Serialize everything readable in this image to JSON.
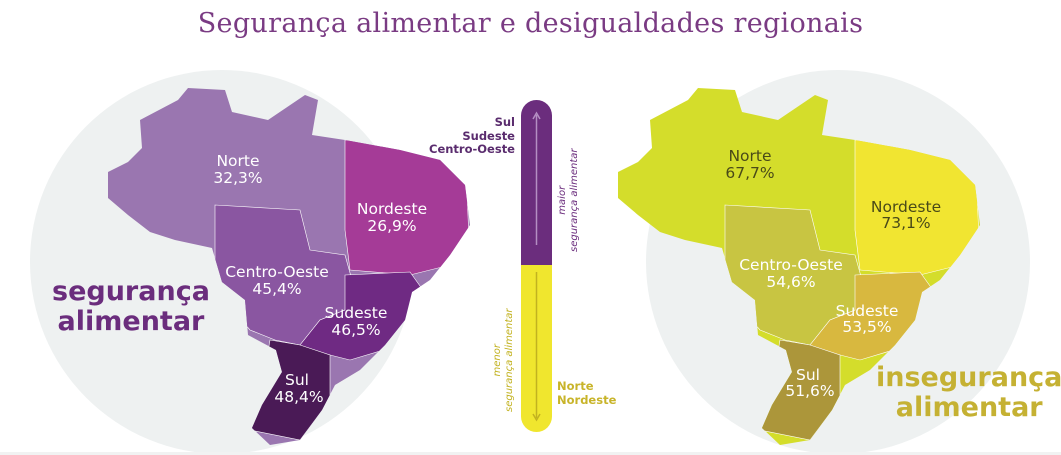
{
  "title": "Segurança alimentar e desigualdades regionais",
  "left_map": {
    "label_line1": "segurança",
    "label_line2": "alimentar",
    "label_color": "#6b2d7d",
    "regions": [
      {
        "name": "Norte",
        "value": "32,3%",
        "color": "#9a76b0"
      },
      {
        "name": "Nordeste",
        "value": "26,9%",
        "color": "#a53b97"
      },
      {
        "name": "Centro-Oeste",
        "value": "45,4%",
        "color": "#8a56a1"
      },
      {
        "name": "Sudeste",
        "value": "46,5%",
        "color": "#6f2a83"
      },
      {
        "name": "Sul",
        "value": "48,4%",
        "color": "#4a1a56"
      }
    ]
  },
  "right_map": {
    "label_line1": "insegurança",
    "label_line2": "alimentar",
    "label_color": "#c5b133",
    "regions": [
      {
        "name": "Norte",
        "value": "67,7%",
        "color": "#d4dd2b"
      },
      {
        "name": "Nordeste",
        "value": "73,1%",
        "color": "#f1e531"
      },
      {
        "name": "Centro-Oeste",
        "value": "54,6%",
        "color": "#c8c542"
      },
      {
        "name": "Sudeste",
        "value": "53,5%",
        "color": "#d8b83f"
      },
      {
        "name": "Sul",
        "value": "51,6%",
        "color": "#ac963a"
      }
    ]
  },
  "legend": {
    "top_regions": [
      "Sul",
      "Sudeste",
      "Centro-Oeste"
    ],
    "bottom_regions": [
      "Norte",
      "Nordeste"
    ],
    "top_caption_line1": "maior",
    "top_caption_line2": "segurança alimentar",
    "bottom_caption_line1": "menor",
    "bottom_caption_line2": "segurança alimentar",
    "top_color": "#6b2d7d",
    "bottom_color": "#f0e62e"
  }
}
